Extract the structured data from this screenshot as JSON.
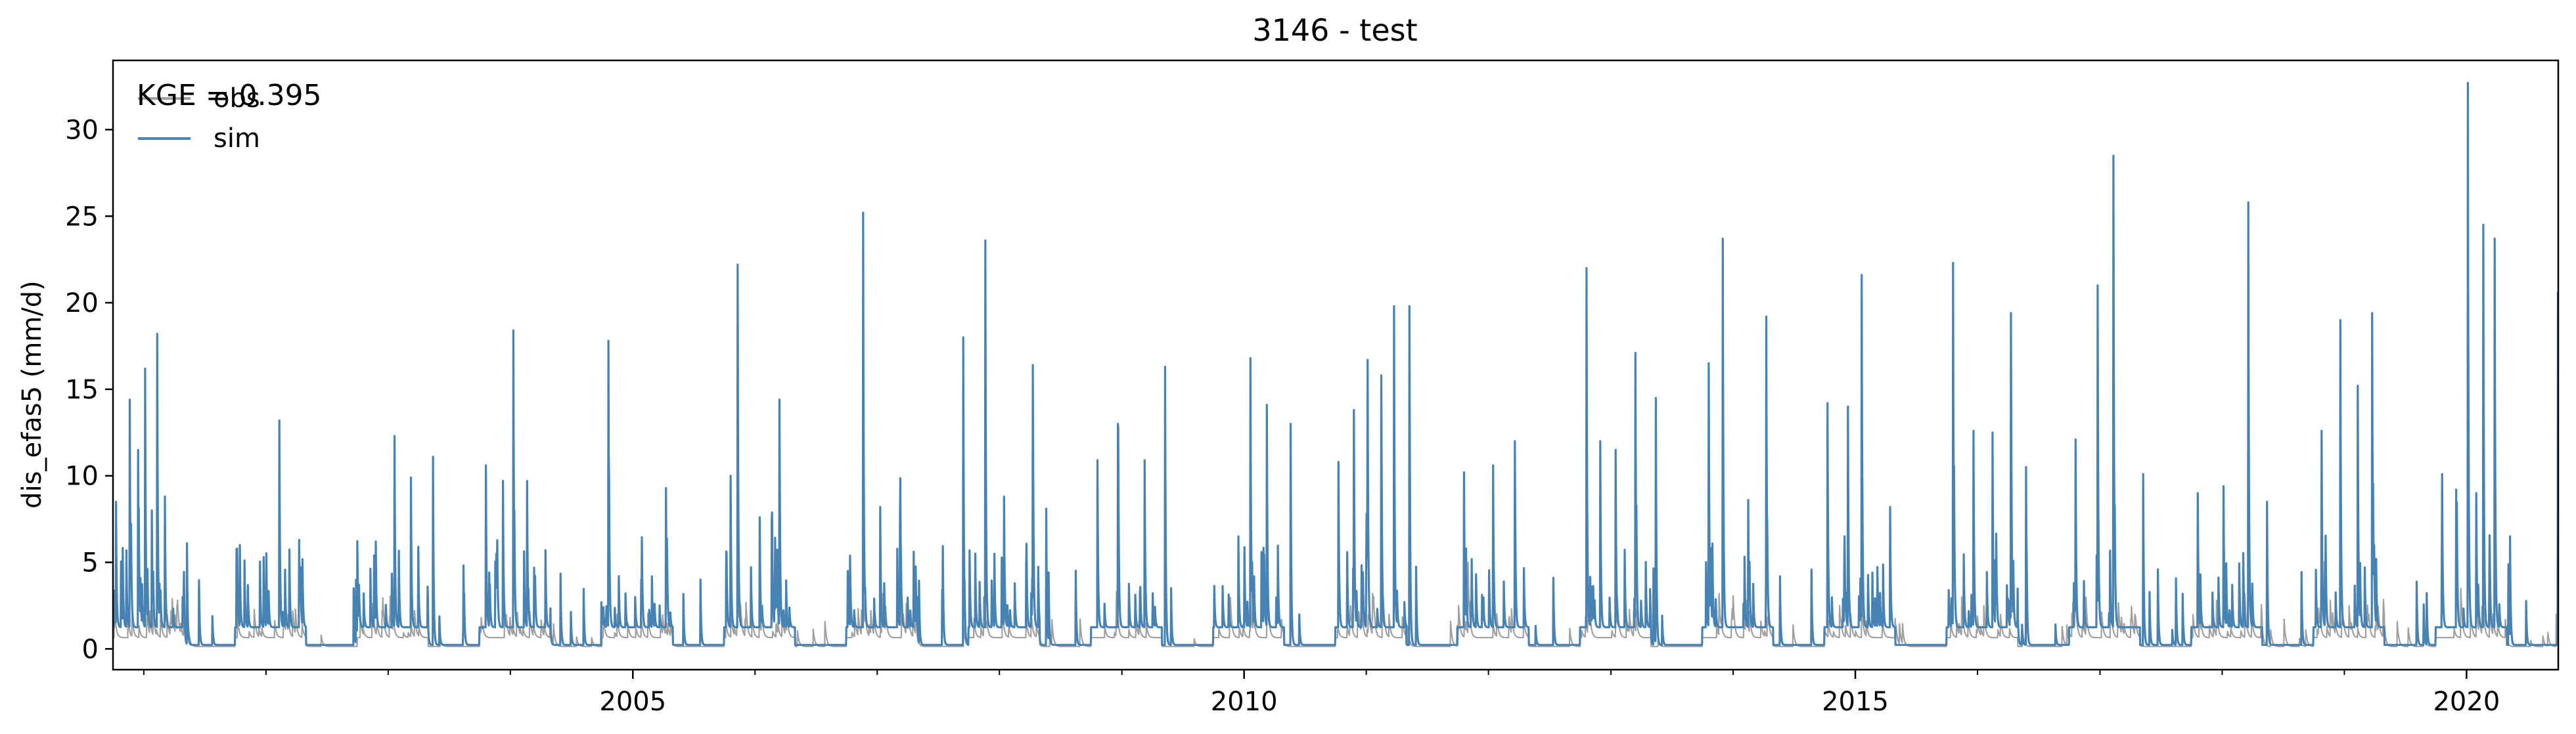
{
  "chart_data": {
    "type": "line",
    "title": "3146 - test",
    "xlabel": "",
    "ylabel": "dis_efas5 (mm/d)",
    "xlim": [
      "2000-10-01",
      "2020-10-01"
    ],
    "ylim": [
      -1.2,
      34.0
    ],
    "grid": false,
    "legend": {
      "placement": "top-left"
    },
    "annotation": "KGE = 0.395",
    "x_ticks": [
      "2005",
      "2010",
      "2015",
      "2020"
    ],
    "y_ticks": [
      0,
      5,
      10,
      15,
      20,
      25,
      30
    ],
    "series": [
      {
        "name": "obs",
        "color": "#a0a0a0",
        "peaks": [
          [
            "2000-11-15",
            1.8
          ],
          [
            "2001-01-10",
            2.5
          ],
          [
            "2001-02-20",
            2.0
          ],
          [
            "2001-12-20",
            1.2
          ],
          [
            "2002-06-15",
            0.8
          ],
          [
            "2003-01-15",
            2.2
          ],
          [
            "2003-03-10",
            1.5
          ],
          [
            "2003-12-15",
            2.5
          ],
          [
            "2004-01-20",
            1.8
          ],
          [
            "2004-03-10",
            1.2
          ],
          [
            "2004-11-15",
            2.0
          ],
          [
            "2005-11-10",
            3.0
          ],
          [
            "2006-01-20",
            2.5
          ],
          [
            "2006-03-10",
            1.6
          ],
          [
            "2006-11-20",
            3.5
          ],
          [
            "2007-01-15",
            2.8
          ],
          [
            "2007-03-20",
            2.0
          ],
          [
            "2007-11-15",
            3.0
          ],
          [
            "2008-01-10",
            2.5
          ],
          [
            "2008-04-05",
            2.2
          ],
          [
            "2008-12-15",
            2.2
          ],
          [
            "2009-03-15",
            1.5
          ],
          [
            "2010-01-20",
            2.8
          ],
          [
            "2010-03-10",
            2.0
          ],
          [
            "2010-11-15",
            2.5
          ],
          [
            "2011-01-20",
            3.2
          ],
          [
            "2011-03-10",
            2.0
          ],
          [
            "2011-11-01",
            5.0
          ],
          [
            "2012-01-15",
            1.5
          ],
          [
            "2012-10-25",
            2.8
          ],
          [
            "2013-01-20",
            3.0
          ],
          [
            "2013-03-10",
            2.2
          ],
          [
            "2013-11-20",
            3.2
          ],
          [
            "2014-02-10",
            2.8
          ],
          [
            "2014-11-15",
            2.5
          ],
          [
            "2015-01-20",
            2.8
          ],
          [
            "2015-11-15",
            3.0
          ],
          [
            "2016-01-20",
            2.5
          ],
          [
            "2016-03-10",
            2.0
          ],
          [
            "2016-11-20",
            3.0
          ],
          [
            "2017-02-01",
            3.5
          ],
          [
            "2017-12-15",
            2.8
          ],
          [
            "2018-03-10",
            3.2
          ],
          [
            "2018-11-20",
            2.8
          ],
          [
            "2019-01-15",
            2.5
          ],
          [
            "2019-03-15",
            2.0
          ],
          [
            "2019-12-15",
            3.5
          ],
          [
            "2020-01-30",
            3.0
          ],
          [
            "2020-03-10",
            2.5
          ],
          [
            "2020-09-25",
            2.0
          ]
        ]
      },
      {
        "name": "sim",
        "color": "#4682b4",
        "peaks": [
          [
            "2000-10-10",
            8.5
          ],
          [
            "2000-11-20",
            14.4
          ],
          [
            "2000-12-15",
            11.5
          ],
          [
            "2001-01-05",
            16.2
          ],
          [
            "2001-01-25",
            8.0
          ],
          [
            "2001-02-10",
            18.2
          ],
          [
            "2001-03-05",
            8.8
          ],
          [
            "2001-05-10",
            6.1
          ],
          [
            "2001-10-15",
            6.0
          ],
          [
            "2001-12-25",
            5.3
          ],
          [
            "2002-02-10",
            13.2
          ],
          [
            "2002-04-10",
            6.3
          ],
          [
            "2002-09-20",
            3.5
          ],
          [
            "2002-11-20",
            5.4
          ],
          [
            "2003-01-20",
            12.3
          ],
          [
            "2003-03-10",
            9.9
          ],
          [
            "2003-05-15",
            11.1
          ],
          [
            "2003-10-20",
            10.6
          ],
          [
            "2003-12-10",
            9.7
          ],
          [
            "2004-01-10",
            18.4
          ],
          [
            "2004-02-20",
            9.7
          ],
          [
            "2004-04-15",
            5.7
          ],
          [
            "2004-10-20",
            17.8
          ],
          [
            "2004-11-20",
            4.2
          ],
          [
            "2005-04-10",
            9.3
          ],
          [
            "2005-10-20",
            10.0
          ],
          [
            "2005-11-10",
            22.2
          ],
          [
            "2006-01-15",
            7.6
          ],
          [
            "2006-02-20",
            7.5
          ],
          [
            "2006-03-15",
            14.4
          ],
          [
            "2006-10-05",
            4.5
          ],
          [
            "2006-11-20",
            25.2
          ],
          [
            "2007-01-10",
            8.2
          ],
          [
            "2007-03-10",
            7.8
          ],
          [
            "2007-09-15",
            18.0
          ],
          [
            "2007-11-20",
            23.6
          ],
          [
            "2008-01-15",
            8.8
          ],
          [
            "2008-04-10",
            16.4
          ],
          [
            "2008-05-20",
            8.1
          ],
          [
            "2008-10-20",
            10.9
          ],
          [
            "2008-12-20",
            13.0
          ],
          [
            "2009-03-10",
            10.9
          ],
          [
            "2009-05-10",
            16.3
          ],
          [
            "2009-12-15",
            6.5
          ],
          [
            "2010-01-20",
            16.8
          ],
          [
            "2010-03-10",
            14.1
          ],
          [
            "2010-05-20",
            13.0
          ],
          [
            "2010-10-10",
            10.8
          ],
          [
            "2010-11-25",
            13.8
          ],
          [
            "2011-01-05",
            16.7
          ],
          [
            "2011-02-15",
            15.8
          ],
          [
            "2011-03-25",
            19.8
          ],
          [
            "2011-05-10",
            19.8
          ],
          [
            "2011-10-20",
            10.2
          ],
          [
            "2012-01-15",
            10.6
          ],
          [
            "2012-03-20",
            12.0
          ],
          [
            "2012-10-20",
            22.0
          ],
          [
            "2012-11-30",
            12.0
          ],
          [
            "2013-01-15",
            11.5
          ],
          [
            "2013-03-15",
            17.1
          ],
          [
            "2013-05-15",
            14.5
          ],
          [
            "2013-10-20",
            16.5
          ],
          [
            "2013-12-01",
            23.7
          ],
          [
            "2014-02-15",
            8.6
          ],
          [
            "2014-04-10",
            19.2
          ],
          [
            "2014-10-10",
            14.2
          ],
          [
            "2014-12-10",
            14.0
          ],
          [
            "2015-01-20",
            21.6
          ],
          [
            "2015-04-15",
            8.2
          ],
          [
            "2015-10-20",
            22.3
          ],
          [
            "2015-12-20",
            12.6
          ],
          [
            "2016-02-15",
            12.5
          ],
          [
            "2016-04-10",
            19.4
          ],
          [
            "2016-05-25",
            10.5
          ],
          [
            "2016-10-20",
            12.1
          ],
          [
            "2016-12-25",
            21.0
          ],
          [
            "2017-02-10",
            28.5
          ],
          [
            "2017-05-10",
            10.1
          ],
          [
            "2017-10-20",
            9.0
          ],
          [
            "2018-01-05",
            9.4
          ],
          [
            "2018-03-20",
            25.8
          ],
          [
            "2018-05-15",
            8.5
          ],
          [
            "2018-10-25",
            12.6
          ],
          [
            "2018-12-20",
            19.0
          ],
          [
            "2019-02-10",
            15.2
          ],
          [
            "2019-03-25",
            19.4
          ],
          [
            "2019-10-20",
            10.1
          ],
          [
            "2019-12-01",
            9.2
          ],
          [
            "2020-01-05",
            32.7
          ],
          [
            "2020-01-30",
            9.0
          ],
          [
            "2020-02-20",
            24.5
          ],
          [
            "2020-03-25",
            23.7
          ],
          [
            "2020-05-10",
            6.5
          ],
          [
            "2020-09-30",
            20.6
          ]
        ]
      }
    ]
  }
}
